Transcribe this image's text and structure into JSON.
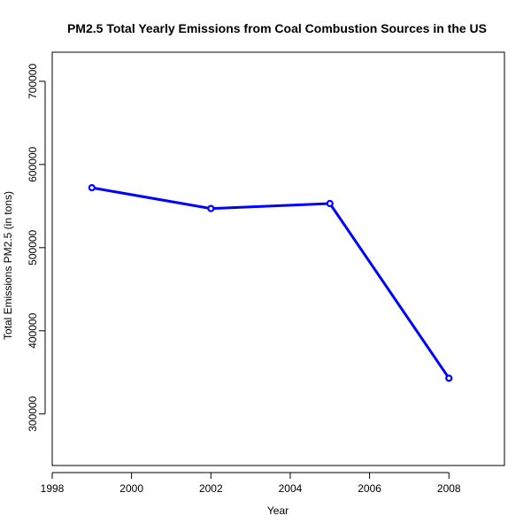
{
  "chart_data": {
    "type": "line",
    "title": "PM2.5 Total Yearly Emissions from Coal Combustion Sources in the US",
    "xlabel": "Year",
    "ylabel": "Total Emissions PM2.5 (in tons)",
    "x": [
      1999,
      2002,
      2005,
      2008
    ],
    "series": [
      {
        "values": [
          572000,
          547000,
          553000,
          343000
        ],
        "color": "#0000ff"
      }
    ],
    "xlim": [
      1998,
      2009.4
    ],
    "ylim": [
      238000,
      735000
    ],
    "xticks": [
      1998,
      2000,
      2002,
      2004,
      2006,
      2008
    ],
    "yticks": [
      300000,
      400000,
      500000,
      600000,
      700000
    ],
    "grid": false,
    "legend": "none"
  }
}
